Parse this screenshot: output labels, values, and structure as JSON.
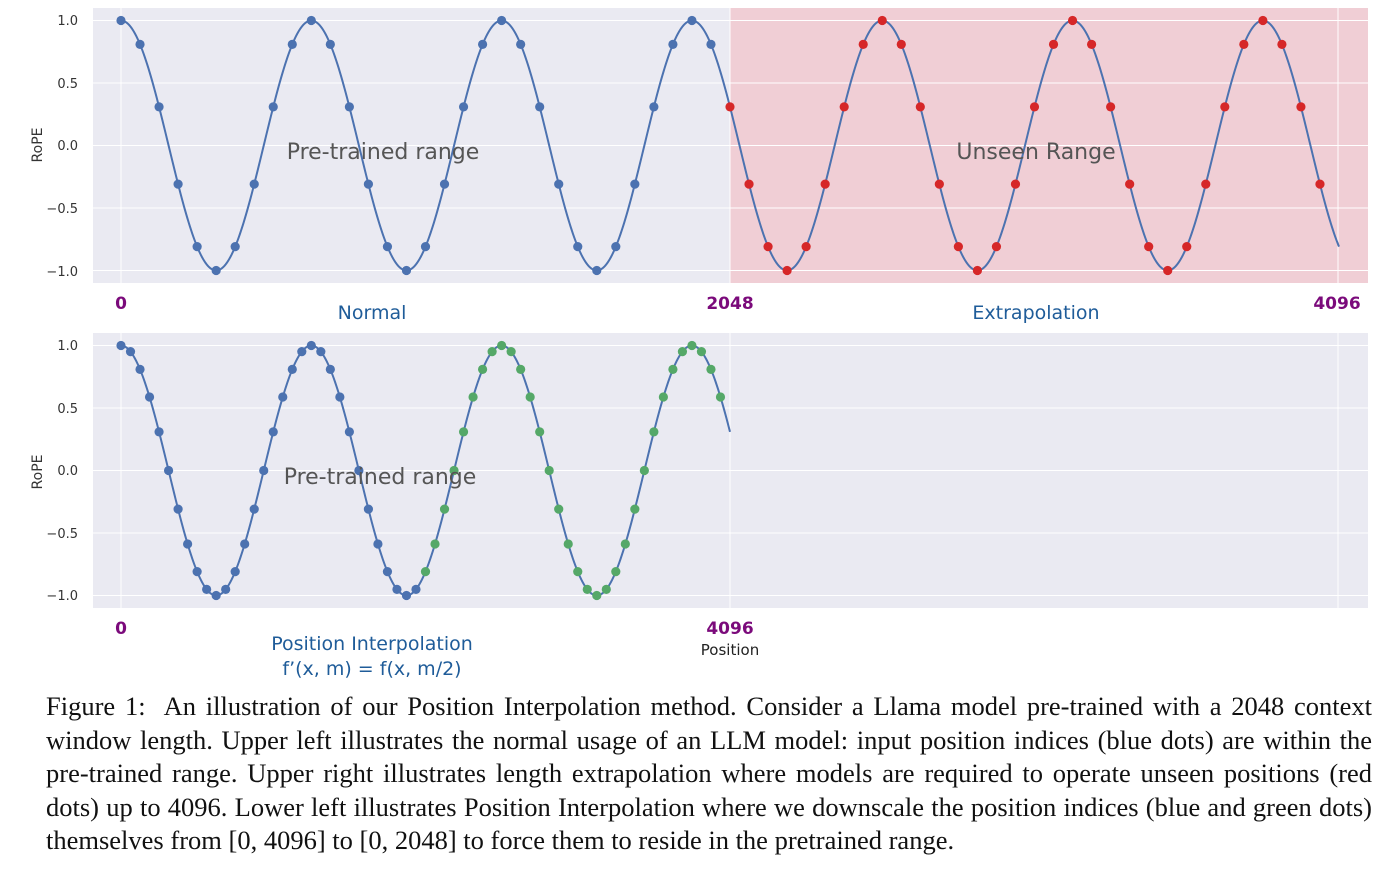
{
  "chart_data": [
    {
      "type": "line",
      "ylabel": "RoPE",
      "ylim": [
        -1.0,
        1.0
      ],
      "yticks": [
        "1.0",
        "0.5",
        "0.0",
        "−0.5",
        "−1.0"
      ],
      "x_markers": [
        "0",
        "2048",
        "4096"
      ],
      "x_range_labels": [
        "Normal",
        "Extrapolation"
      ],
      "annotations": [
        "Pre-trained range",
        "Unseen Range"
      ],
      "shaded_region": {
        "label": "Unseen Range",
        "x_from": 2048,
        "x_to": 4096,
        "color": "#f4b6bd"
      },
      "series": [
        {
          "style": "curve",
          "color": "#4c72b0",
          "x_from": 0,
          "x_to": 4096,
          "cycles_per_2048": 3.2,
          "phase_deg": 0
        },
        {
          "style": "dots",
          "color": "#4c72b0",
          "x_from": 0,
          "x_to": 2048,
          "count": 32,
          "step": 64
        },
        {
          "style": "dots",
          "color": "#d62728",
          "x_from": 2048,
          "x_to": 4096,
          "count": 32,
          "step": 64
        }
      ]
    },
    {
      "type": "line",
      "ylabel": "RoPE",
      "xlabel": "Position",
      "ylim": [
        -1.0,
        1.0
      ],
      "yticks": [
        "1.0",
        "0.5",
        "0.0",
        "−0.5",
        "−1.0"
      ],
      "x_markers": [
        "0",
        "4096"
      ],
      "x_range_labels": [
        "Position Interpolation",
        "f’(x, m) = f(x, m/2)"
      ],
      "annotations": [
        "Pre-trained range"
      ],
      "series": [
        {
          "style": "curve",
          "color": "#4c72b0",
          "x_from": 0,
          "x_to": 2048,
          "cycles_per_2048": 3.2,
          "phase_deg": 0
        },
        {
          "style": "dots",
          "color": "#4c72b0",
          "x_from": 0,
          "x_to": 2048,
          "count": 32,
          "step": 64
        },
        {
          "style": "dots",
          "color": "#55a868",
          "x_from": 2048,
          "x_to": 4096,
          "count": 32,
          "step": 64
        }
      ]
    }
  ],
  "caption": {
    "label": "Figure 1:",
    "text": "An illustration of our Position Interpolation method. Consider a Llama model pre-trained with a 2048 context window length. Upper left illustrates the normal usage of an LLM model: input position indices (blue dots) are within the pre-trained range. Upper right illustrates length extrapolation where models are required to operate unseen positions (red dots) up to 4096. Lower left illustrates Position Interpolation where we downscale the position indices (blue and green dots) themselves from [0, 4096] to [0, 2048] to force them to reside in the pretrained range."
  }
}
